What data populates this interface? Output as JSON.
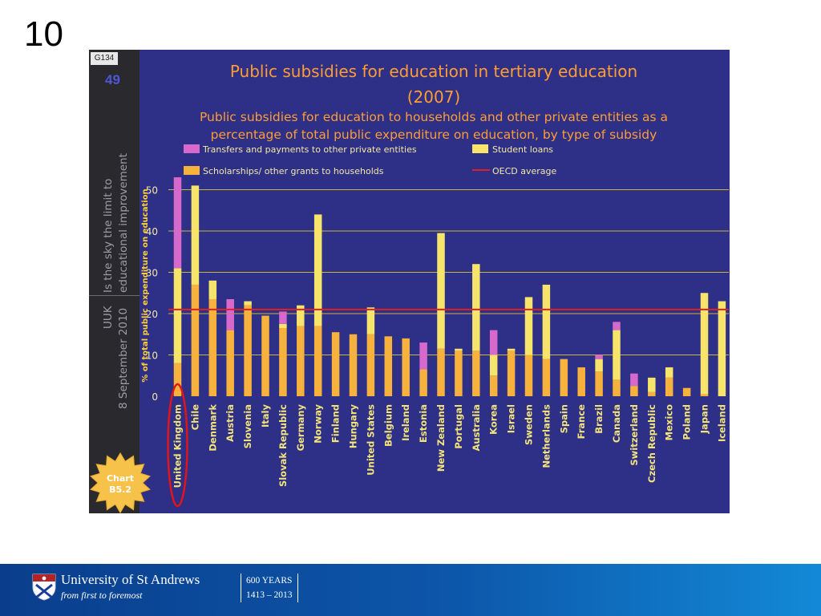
{
  "slide": {
    "number": "10"
  },
  "figure": {
    "code": "G134",
    "page": "49",
    "sidebar_text_line1": "Is the sky the limit to",
    "sidebar_text_line2": "educational improvement",
    "sidebar_text_line3": "UUK",
    "sidebar_text_line4": "8 September 2010",
    "badge_line1": "Chart",
    "badge_line2": "B5.2"
  },
  "chart_data": {
    "type": "bar",
    "stacked": true,
    "title": "Public subsidies for education in tertiary education",
    "title_year": "(2007)",
    "subtitle_line1": "Public subsidies for education to households and other private entities as a",
    "subtitle_line2": "percentage of total public expenditure on education, by type of subsidy",
    "ylabel": "% of total public expenditure on education",
    "ylim": [
      0,
      55
    ],
    "yticks": [
      0,
      10,
      20,
      30,
      40,
      50
    ],
    "grid": true,
    "legend_position": "top",
    "oecd_average": 21,
    "legend": {
      "transfers": "Transfers and payments to other private entities",
      "loans": "Student loans",
      "scholarships": "Scholarships/ other grants to households",
      "oecd": "OECD average"
    },
    "highlighted_category": "United Kingdom",
    "categories": [
      "United Kingdom",
      "Chile",
      "Denmark",
      "Austria",
      "Slovenia",
      "Italy",
      "Slovak Republic",
      "Germany",
      "Norway",
      "Finland",
      "Hungary",
      "United States",
      "Belgium",
      "Ireland",
      "Estonia",
      "New Zealand",
      "Portugal",
      "Australia",
      "Korea",
      "Israel",
      "Sweden",
      "Netherlands",
      "Spain",
      "France",
      "Brazil",
      "Canada",
      "Switzerland",
      "Czech Republic",
      "Mexico",
      "Poland",
      "Japan",
      "Iceland"
    ],
    "series": [
      {
        "name": "Scholarships/ other grants to households",
        "color": "#f6b23d",
        "values": [
          8,
          27,
          23.5,
          16,
          22,
          19.5,
          16.5,
          17,
          17,
          15.5,
          15,
          15,
          14.5,
          14,
          6.5,
          11.5,
          11,
          11,
          5,
          11,
          10,
          9,
          9,
          7,
          6,
          4,
          2.5,
          1,
          4.5,
          2,
          0.5,
          0
        ]
      },
      {
        "name": "Student loans",
        "color": "#f7e56b",
        "values": [
          23,
          24,
          4.5,
          0,
          1,
          0,
          1,
          5,
          27,
          0,
          0,
          6.5,
          0,
          0,
          0,
          28,
          0.5,
          21,
          5,
          0.5,
          14,
          18,
          0,
          0,
          3,
          12,
          0,
          3.5,
          2.5,
          0,
          24.5,
          23
        ]
      },
      {
        "name": "Transfers and payments to other private entities",
        "color": "#d869cc",
        "values": [
          22,
          0,
          0,
          7.5,
          0,
          0,
          3,
          0,
          0,
          0,
          0,
          0,
          0,
          0,
          6.5,
          0,
          0,
          0,
          6,
          0,
          0,
          0,
          0,
          0,
          1,
          2,
          3,
          0,
          0,
          0,
          0,
          0
        ]
      }
    ]
  },
  "footer": {
    "university": "University of St Andrews",
    "motto": "from first to foremost",
    "years_line1": "600 YEARS",
    "years_line2": "1413 – 2013"
  }
}
